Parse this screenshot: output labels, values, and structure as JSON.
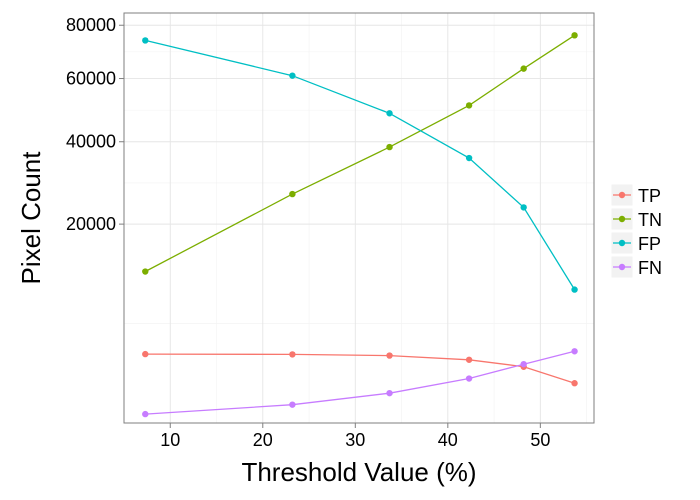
{
  "chart_data": {
    "type": "line",
    "title": "",
    "xlabel": "Threshold Value (%)",
    "ylabel": "Pixel Count",
    "x": [
      7.3,
      23.2,
      33.7,
      42.3,
      48.2,
      53.7
    ],
    "xlim": [
      5.0,
      55.8
    ],
    "xticks": [
      10,
      20,
      30,
      40,
      50
    ],
    "y_scale": "sqrt",
    "ylim": [
      0,
      85000
    ],
    "yticks": [
      20000,
      40000,
      60000,
      80000
    ],
    "grid": true,
    "legend_position": "right",
    "series": [
      {
        "name": "TP",
        "color": "#F8766D",
        "values": [
          2400,
          2380,
          2300,
          2020,
          1600,
          800
        ]
      },
      {
        "name": "TN",
        "color": "#7CAE00",
        "values": [
          11600,
          26500,
          38500,
          51000,
          63500,
          76000
        ]
      },
      {
        "name": "FP",
        "color": "#00BFC4",
        "values": [
          74000,
          61000,
          48500,
          35500,
          23500,
          9000
        ]
      },
      {
        "name": "FN",
        "color": "#C77CFF",
        "values": [
          40,
          170,
          450,
          1000,
          1750,
          2600
        ]
      }
    ]
  }
}
